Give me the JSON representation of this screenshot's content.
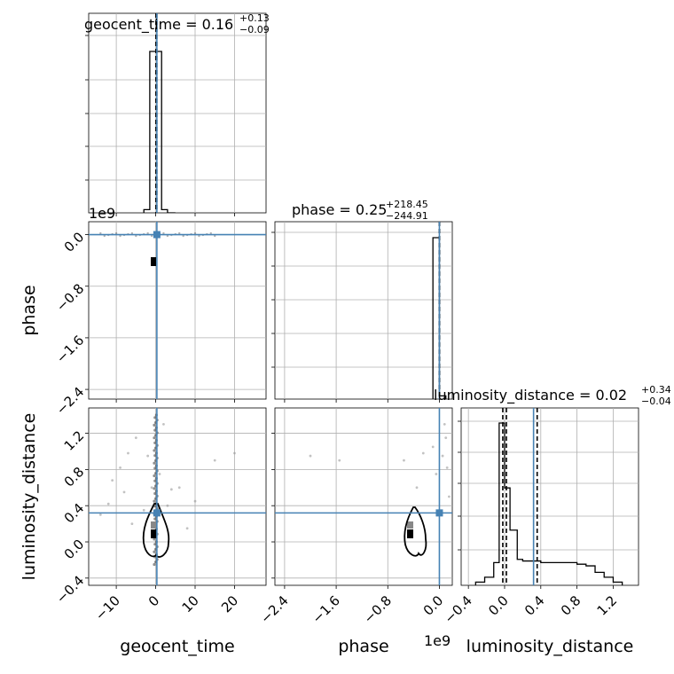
{
  "chart_data": {
    "type": "corner",
    "parameters": [
      "geocent_time",
      "phase",
      "luminosity_distance"
    ],
    "axis_labels": {
      "geocent_time": "geocent_time",
      "phase": "phase",
      "luminosity_distance": "luminosity_distance"
    },
    "truth": {
      "geocent_time": 0.3,
      "phase": 0.0,
      "luminosity_distance": 0.32
    },
    "truth_color": "#4682b4",
    "scale_offsets": {
      "phase_y": "1e9",
      "phase_x": "1e9"
    },
    "titles": [
      {
        "param": "geocent_time",
        "label": "geocent_time = 0.16",
        "plus": "+0.13",
        "minus": "−0.09"
      },
      {
        "param": "phase",
        "label": "phase = 0.25",
        "plus": "+218.45",
        "minus": "−244.91"
      },
      {
        "param": "luminosity_distance",
        "label": "luminosity_distance = 0.02",
        "plus": "+0.34",
        "minus": "−0.04"
      }
    ],
    "ranges": {
      "geocent_time": [
        -17,
        28
      ],
      "phase": [
        -2.55,
        0.2
      ],
      "luminosity_distance": [
        -0.48,
        1.48
      ]
    },
    "ticks": {
      "geocent_time": {
        "values": [
          -10,
          0,
          10,
          20
        ],
        "labels": [
          "−10",
          "0",
          "10",
          "20"
        ]
      },
      "phase": {
        "values": [
          -2.4,
          -1.6,
          -0.8,
          0.0
        ],
        "labels": [
          "−2.4",
          "−1.6",
          "−0.8",
          "0.0"
        ]
      },
      "luminosity_distance": {
        "values": [
          -0.4,
          0.0,
          0.4,
          0.8,
          1.2
        ],
        "labels": [
          "−0.4",
          "0.0",
          "0.4",
          "0.8",
          "1.2"
        ]
      }
    },
    "quantiles": {
      "geocent_time": [
        0.07,
        0.16,
        0.29
      ],
      "phase": [
        -2e-07,
        0.0,
        2e-07
      ],
      "luminosity_distance": [
        -0.02,
        0.02,
        0.36
      ]
    },
    "histograms": {
      "geocent_time": {
        "edges": [
          -3,
          -1.5,
          0,
          1.5,
          3,
          5
        ],
        "counts": [
          0.02,
          1.0,
          1.0,
          0.02,
          0.0
        ]
      },
      "phase": {
        "edges": [
          -0.1,
          0.0,
          0.1
        ],
        "counts": [
          1.0,
          0.02
        ]
      },
      "luminosity_distance": {
        "edges": [
          -0.32,
          -0.22,
          -0.12,
          -0.06,
          0.0,
          0.06,
          0.14,
          0.2,
          0.3,
          0.4,
          0.5,
          0.6,
          0.7,
          0.8,
          0.9,
          1.0,
          1.1,
          1.2,
          1.3
        ],
        "counts": [
          0.02,
          0.05,
          0.14,
          1.0,
          0.6,
          0.34,
          0.16,
          0.15,
          0.15,
          0.14,
          0.14,
          0.14,
          0.14,
          0.13,
          0.12,
          0.08,
          0.05,
          0.02
        ]
      }
    },
    "scatter_luminosity_vs_geocent": [
      [
        -9,
        0.82
      ],
      [
        -11,
        0.68
      ],
      [
        -8,
        0.55
      ],
      [
        -12,
        0.42
      ],
      [
        -5,
        1.15
      ],
      [
        4,
        0.58
      ],
      [
        6,
        0.6
      ],
      [
        -3,
        0.35
      ],
      [
        -6,
        0.2
      ],
      [
        15,
        0.9
      ],
      [
        20,
        0.98
      ],
      [
        2,
        1.3
      ],
      [
        -2,
        0.95
      ],
      [
        3,
        0.4
      ],
      [
        -14,
        0.3
      ],
      [
        8,
        0.15
      ],
      [
        -1,
        0.6
      ],
      [
        1,
        0.75
      ],
      [
        -7,
        0.98
      ],
      [
        10,
        0.45
      ]
    ],
    "scatter_luminosity_vs_phase": [
      [
        -0.55,
        0.9
      ],
      [
        -0.25,
        0.98
      ],
      [
        -0.1,
        1.05
      ],
      [
        0.05,
        0.95
      ],
      [
        0.1,
        1.15
      ],
      [
        0.12,
        0.82
      ],
      [
        -0.05,
        0.75
      ],
      [
        0.08,
        1.3
      ],
      [
        -1.55,
        0.9
      ],
      [
        -0.35,
        0.6
      ],
      [
        0.15,
        0.5
      ],
      [
        -2.0,
        0.95
      ]
    ]
  }
}
